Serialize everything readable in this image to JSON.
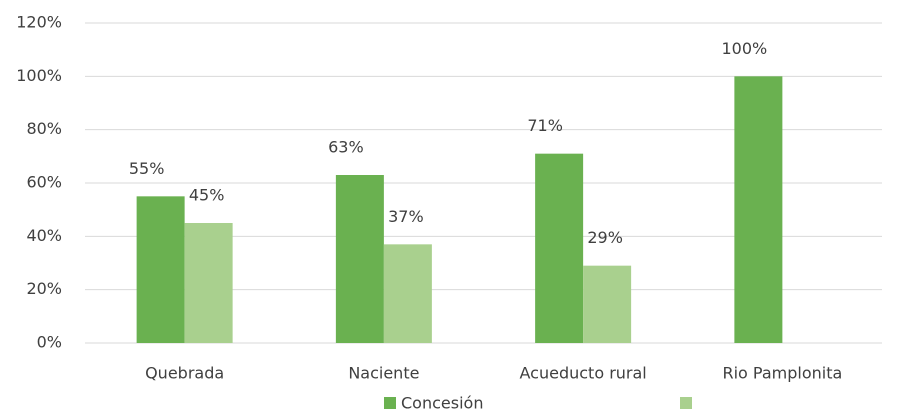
{
  "chart_data": {
    "type": "bar",
    "categories": [
      "Quebrada",
      "Naciente",
      "Acueducto rural",
      "Rio Pamplonita"
    ],
    "series": [
      {
        "name": "Concesión",
        "color": "#6ab150",
        "values": [
          55,
          63,
          71,
          100
        ],
        "value_labels": [
          "55%",
          "63%",
          "71%",
          "100%"
        ]
      },
      {
        "color": "#a9d08e",
        "values": [
          45,
          37,
          29,
          null
        ],
        "value_labels": [
          "45%",
          "37%",
          "29%",
          null
        ]
      }
    ],
    "ylim": [
      0,
      120
    ],
    "yticks": [
      {
        "value": 0,
        "label": "0%"
      },
      {
        "value": 20,
        "label": "20%"
      },
      {
        "value": 40,
        "label": "40%"
      },
      {
        "value": 60,
        "label": "60%"
      },
      {
        "value": 80,
        "label": "80%"
      },
      {
        "value": 100,
        "label": "100%"
      },
      {
        "value": 120,
        "label": "120%"
      }
    ],
    "grid": true
  }
}
